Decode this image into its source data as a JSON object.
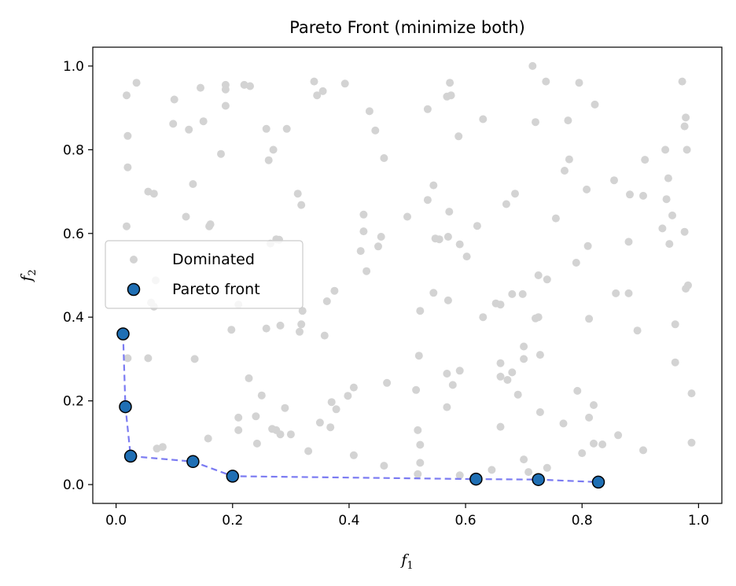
{
  "chart_data": {
    "type": "scatter",
    "title": "Pareto Front (minimize both)",
    "xlabel": {
      "base": "f",
      "sub": "1"
    },
    "ylabel": {
      "base": "f",
      "sub": "2"
    },
    "xlim": [
      -0.04,
      1.04
    ],
    "ylim": [
      -0.045,
      1.045
    ],
    "xticks": [
      0.0,
      0.2,
      0.4,
      0.6,
      0.8,
      1.0
    ],
    "yticks": [
      0.0,
      0.2,
      0.4,
      0.6,
      0.8,
      1.0
    ],
    "xtick_labels": [
      "0.0",
      "0.2",
      "0.4",
      "0.6",
      "0.8",
      "1.0"
    ],
    "ytick_labels": [
      "0.0",
      "0.2",
      "0.4",
      "0.6",
      "0.8",
      "1.0"
    ],
    "grid": false,
    "legend_position": "center-left",
    "colors": {
      "dominated": "#d3d3d3",
      "pareto_fill": "#1f6fb4",
      "pareto_edge": "#000000",
      "front_line": "#7b7bf2"
    },
    "series": [
      {
        "name": "Dominated",
        "marker": "small-circle",
        "points": [
          [
            0.018,
            0.93
          ],
          [
            0.035,
            0.96
          ],
          [
            0.02,
            0.833
          ],
          [
            0.02,
            0.758
          ],
          [
            0.018,
            0.617
          ],
          [
            0.055,
            0.7
          ],
          [
            0.065,
            0.695
          ],
          [
            0.098,
            0.862
          ],
          [
            0.1,
            0.92
          ],
          [
            0.125,
            0.848
          ],
          [
            0.132,
            0.718
          ],
          [
            0.12,
            0.64
          ],
          [
            0.145,
            0.948
          ],
          [
            0.15,
            0.868
          ],
          [
            0.18,
            0.79
          ],
          [
            0.188,
            0.955
          ],
          [
            0.188,
            0.944
          ],
          [
            0.188,
            0.905
          ],
          [
            0.22,
            0.955
          ],
          [
            0.23,
            0.952
          ],
          [
            0.258,
            0.85
          ],
          [
            0.262,
            0.775
          ],
          [
            0.27,
            0.8
          ],
          [
            0.293,
            0.85
          ],
          [
            0.34,
            0.963
          ],
          [
            0.345,
            0.93
          ],
          [
            0.355,
            0.94
          ],
          [
            0.393,
            0.958
          ],
          [
            0.435,
            0.892
          ],
          [
            0.445,
            0.846
          ],
          [
            0.46,
            0.78
          ],
          [
            0.535,
            0.897
          ],
          [
            0.568,
            0.927
          ],
          [
            0.573,
            0.96
          ],
          [
            0.575,
            0.93
          ],
          [
            0.588,
            0.832
          ],
          [
            0.63,
            0.873
          ],
          [
            0.715,
            1.0
          ],
          [
            0.738,
            0.963
          ],
          [
            0.72,
            0.866
          ],
          [
            0.776,
            0.87
          ],
          [
            0.795,
            0.96
          ],
          [
            0.822,
            0.908
          ],
          [
            0.77,
            0.75
          ],
          [
            0.778,
            0.777
          ],
          [
            0.808,
            0.705
          ],
          [
            0.855,
            0.727
          ],
          [
            0.882,
            0.693
          ],
          [
            0.905,
            0.69
          ],
          [
            0.908,
            0.776
          ],
          [
            0.943,
            0.8
          ],
          [
            0.948,
            0.732
          ],
          [
            0.945,
            0.682
          ],
          [
            0.955,
            0.643
          ],
          [
            0.938,
            0.612
          ],
          [
            0.95,
            0.575
          ],
          [
            0.972,
            0.963
          ],
          [
            0.976,
            0.856
          ],
          [
            0.978,
            0.877
          ],
          [
            0.98,
            0.8
          ],
          [
            0.976,
            0.604
          ],
          [
            0.978,
            0.468
          ],
          [
            0.982,
            0.476
          ],
          [
            0.96,
            0.383
          ],
          [
            0.96,
            0.292
          ],
          [
            0.988,
            0.218
          ],
          [
            0.988,
            0.1
          ],
          [
            0.905,
            0.082
          ],
          [
            0.862,
            0.118
          ],
          [
            0.858,
            0.457
          ],
          [
            0.88,
            0.457
          ],
          [
            0.88,
            0.58
          ],
          [
            0.895,
            0.368
          ],
          [
            0.79,
            0.53
          ],
          [
            0.81,
            0.57
          ],
          [
            0.812,
            0.396
          ],
          [
            0.755,
            0.636
          ],
          [
            0.74,
            0.49
          ],
          [
            0.725,
            0.5
          ],
          [
            0.72,
            0.397
          ],
          [
            0.725,
            0.4
          ],
          [
            0.67,
            0.67
          ],
          [
            0.685,
            0.695
          ],
          [
            0.68,
            0.455
          ],
          [
            0.698,
            0.455
          ],
          [
            0.7,
            0.33
          ],
          [
            0.7,
            0.3
          ],
          [
            0.728,
            0.31
          ],
          [
            0.728,
            0.173
          ],
          [
            0.69,
            0.215
          ],
          [
            0.68,
            0.268
          ],
          [
            0.672,
            0.25
          ],
          [
            0.66,
            0.258
          ],
          [
            0.66,
            0.29
          ],
          [
            0.652,
            0.433
          ],
          [
            0.66,
            0.43
          ],
          [
            0.63,
            0.4
          ],
          [
            0.62,
            0.618
          ],
          [
            0.602,
            0.545
          ],
          [
            0.59,
            0.574
          ],
          [
            0.57,
            0.592
          ],
          [
            0.572,
            0.652
          ],
          [
            0.548,
            0.588
          ],
          [
            0.535,
            0.68
          ],
          [
            0.545,
            0.715
          ],
          [
            0.555,
            0.586
          ],
          [
            0.5,
            0.64
          ],
          [
            0.57,
            0.44
          ],
          [
            0.545,
            0.458
          ],
          [
            0.522,
            0.415
          ],
          [
            0.52,
            0.308
          ],
          [
            0.568,
            0.265
          ],
          [
            0.578,
            0.238
          ],
          [
            0.59,
            0.272
          ],
          [
            0.568,
            0.185
          ],
          [
            0.515,
            0.226
          ],
          [
            0.518,
            0.13
          ],
          [
            0.522,
            0.095
          ],
          [
            0.522,
            0.052
          ],
          [
            0.518,
            0.025
          ],
          [
            0.59,
            0.022
          ],
          [
            0.645,
            0.035
          ],
          [
            0.66,
            0.138
          ],
          [
            0.7,
            0.06
          ],
          [
            0.708,
            0.03
          ],
          [
            0.74,
            0.04
          ],
          [
            0.768,
            0.146
          ],
          [
            0.792,
            0.224
          ],
          [
            0.8,
            0.075
          ],
          [
            0.812,
            0.16
          ],
          [
            0.82,
            0.19
          ],
          [
            0.82,
            0.098
          ],
          [
            0.835,
            0.096
          ],
          [
            0.455,
            0.592
          ],
          [
            0.45,
            0.569
          ],
          [
            0.425,
            0.645
          ],
          [
            0.425,
            0.605
          ],
          [
            0.42,
            0.558
          ],
          [
            0.43,
            0.51
          ],
          [
            0.465,
            0.243
          ],
          [
            0.46,
            0.045
          ],
          [
            0.408,
            0.07
          ],
          [
            0.408,
            0.232
          ],
          [
            0.398,
            0.212
          ],
          [
            0.378,
            0.18
          ],
          [
            0.37,
            0.197
          ],
          [
            0.368,
            0.137
          ],
          [
            0.35,
            0.148
          ],
          [
            0.33,
            0.08
          ],
          [
            0.358,
            0.356
          ],
          [
            0.362,
            0.438
          ],
          [
            0.375,
            0.463
          ],
          [
            0.312,
            0.695
          ],
          [
            0.318,
            0.668
          ],
          [
            0.32,
            0.415
          ],
          [
            0.318,
            0.383
          ],
          [
            0.315,
            0.365
          ],
          [
            0.28,
            0.585
          ],
          [
            0.282,
            0.38
          ],
          [
            0.258,
            0.373
          ],
          [
            0.275,
            0.586
          ],
          [
            0.265,
            0.576
          ],
          [
            0.25,
            0.213
          ],
          [
            0.228,
            0.254
          ],
          [
            0.24,
            0.163
          ],
          [
            0.242,
            0.098
          ],
          [
            0.268,
            0.133
          ],
          [
            0.275,
            0.13
          ],
          [
            0.282,
            0.12
          ],
          [
            0.29,
            0.183
          ],
          [
            0.3,
            0.12
          ],
          [
            0.21,
            0.43
          ],
          [
            0.21,
            0.16
          ],
          [
            0.21,
            0.13
          ],
          [
            0.198,
            0.37
          ],
          [
            0.16,
            0.617
          ],
          [
            0.162,
            0.622
          ],
          [
            0.158,
            0.11
          ],
          [
            0.135,
            0.3
          ],
          [
            0.07,
            0.086
          ],
          [
            0.08,
            0.09
          ],
          [
            0.06,
            0.435
          ],
          [
            0.065,
            0.425
          ],
          [
            0.068,
            0.488
          ],
          [
            0.055,
            0.302
          ],
          [
            0.02,
            0.302
          ]
        ]
      },
      {
        "name": "Pareto front",
        "marker": "large-circle",
        "points": [
          [
            0.012,
            0.36
          ],
          [
            0.016,
            0.186
          ],
          [
            0.025,
            0.068
          ],
          [
            0.132,
            0.055
          ],
          [
            0.2,
            0.02
          ],
          [
            0.618,
            0.013
          ],
          [
            0.725,
            0.012
          ],
          [
            0.828,
            0.006
          ]
        ]
      }
    ]
  }
}
